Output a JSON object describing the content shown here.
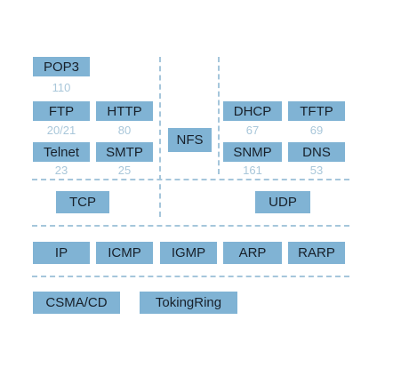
{
  "application_layer": {
    "pop3": {
      "label": "POP3",
      "port": "110"
    },
    "ftp": {
      "label": "FTP",
      "port": "20/21"
    },
    "http": {
      "label": "HTTP",
      "port": "80"
    },
    "telnet": {
      "label": "Telnet",
      "port": "23"
    },
    "smtp": {
      "label": "SMTP",
      "port": "25"
    },
    "nfs": {
      "label": "NFS"
    },
    "dhcp": {
      "label": "DHCP",
      "port": "67"
    },
    "tftp": {
      "label": "TFTP",
      "port": "69"
    },
    "snmp": {
      "label": "SNMP",
      "port": "161"
    },
    "dns": {
      "label": "DNS",
      "port": "53"
    }
  },
  "transport_layer": {
    "tcp": {
      "label": "TCP"
    },
    "udp": {
      "label": "UDP"
    }
  },
  "network_layer": {
    "ip": {
      "label": "IP"
    },
    "icmp": {
      "label": "ICMP"
    },
    "igmp": {
      "label": "IGMP"
    },
    "arp": {
      "label": "ARP"
    },
    "rarp": {
      "label": "RARP"
    }
  },
  "link_layer": {
    "csma_cd": {
      "label": "CSMA/CD"
    },
    "token_ring": {
      "label": "TokingRing"
    }
  },
  "colors": {
    "box_fill": "#80b3d4",
    "port_text": "#a9c7da",
    "divider": "#a5c6db"
  }
}
